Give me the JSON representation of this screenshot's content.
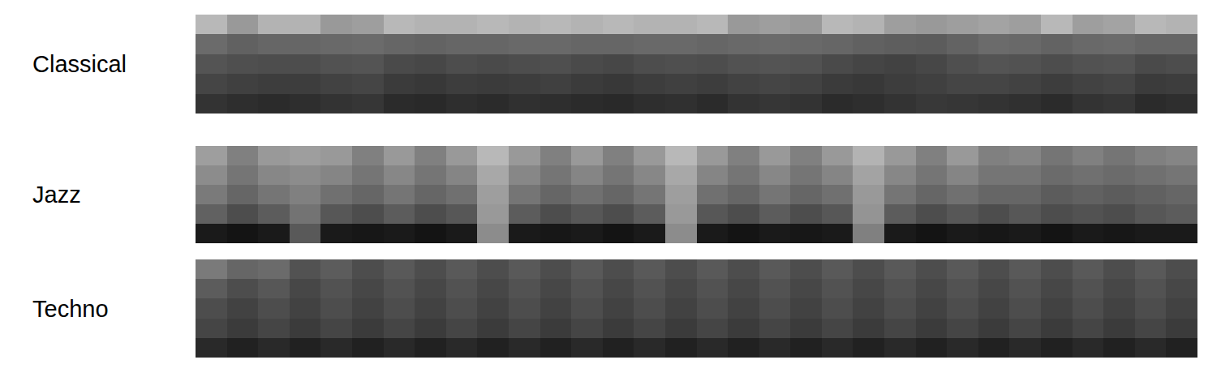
{
  "chart_data": [
    {
      "type": "heatmap",
      "title": "Classical",
      "tick_labels": false,
      "zlim": [
        0,
        1
      ],
      "z": [
        [
          0.2,
          0.18,
          0.17,
          0.18,
          0.2,
          0.21,
          0.17,
          0.16,
          0.18,
          0.17,
          0.19,
          0.18,
          0.17,
          0.16,
          0.18,
          0.19,
          0.17,
          0.2,
          0.21,
          0.2,
          0.17,
          0.18,
          0.2,
          0.22,
          0.21,
          0.2,
          0.19,
          0.17,
          0.2,
          0.21,
          0.17,
          0.18
        ],
        [
          0.27,
          0.25,
          0.24,
          0.24,
          0.26,
          0.27,
          0.23,
          0.22,
          0.24,
          0.23,
          0.24,
          0.25,
          0.23,
          0.22,
          0.24,
          0.25,
          0.24,
          0.26,
          0.27,
          0.26,
          0.23,
          0.22,
          0.24,
          0.25,
          0.27,
          0.27,
          0.26,
          0.24,
          0.26,
          0.27,
          0.23,
          0.24
        ],
        [
          0.33,
          0.31,
          0.3,
          0.3,
          0.32,
          0.33,
          0.29,
          0.28,
          0.3,
          0.29,
          0.3,
          0.31,
          0.29,
          0.28,
          0.3,
          0.31,
          0.3,
          0.32,
          0.33,
          0.32,
          0.29,
          0.27,
          0.26,
          0.28,
          0.31,
          0.33,
          0.32,
          0.3,
          0.32,
          0.33,
          0.29,
          0.3
        ],
        [
          0.42,
          0.38,
          0.4,
          0.4,
          0.41,
          0.42,
          0.4,
          0.39,
          0.4,
          0.4,
          0.41,
          0.41,
          0.4,
          0.4,
          0.41,
          0.41,
          0.4,
          0.41,
          0.42,
          0.41,
          0.4,
          0.38,
          0.37,
          0.36,
          0.39,
          0.42,
          0.41,
          0.39,
          0.41,
          0.42,
          0.4,
          0.4
        ],
        [
          0.72,
          0.6,
          0.7,
          0.7,
          0.6,
          0.62,
          0.72,
          0.7,
          0.7,
          0.72,
          0.7,
          0.72,
          0.7,
          0.72,
          0.7,
          0.7,
          0.72,
          0.6,
          0.62,
          0.6,
          0.72,
          0.7,
          0.62,
          0.6,
          0.62,
          0.64,
          0.62,
          0.72,
          0.62,
          0.64,
          0.72,
          0.7
        ]
      ]
    },
    {
      "type": "heatmap",
      "title": "Jazz",
      "tick_labels": false,
      "zlim": [
        0,
        1
      ],
      "z": [
        [
          0.1,
          0.08,
          0.1,
          0.35,
          0.1,
          0.09,
          0.1,
          0.08,
          0.1,
          0.55,
          0.1,
          0.09,
          0.1,
          0.08,
          0.1,
          0.55,
          0.1,
          0.08,
          0.1,
          0.09,
          0.1,
          0.5,
          0.1,
          0.08,
          0.1,
          0.09,
          0.1,
          0.08,
          0.1,
          0.09,
          0.1,
          0.1
        ],
        [
          0.38,
          0.3,
          0.36,
          0.45,
          0.34,
          0.3,
          0.36,
          0.3,
          0.34,
          0.6,
          0.36,
          0.3,
          0.34,
          0.3,
          0.36,
          0.6,
          0.34,
          0.3,
          0.36,
          0.3,
          0.34,
          0.58,
          0.36,
          0.3,
          0.34,
          0.3,
          0.34,
          0.3,
          0.32,
          0.3,
          0.34,
          0.36
        ],
        [
          0.48,
          0.4,
          0.46,
          0.5,
          0.44,
          0.4,
          0.46,
          0.4,
          0.44,
          0.62,
          0.46,
          0.4,
          0.44,
          0.4,
          0.46,
          0.62,
          0.44,
          0.4,
          0.46,
          0.4,
          0.44,
          0.6,
          0.46,
          0.4,
          0.44,
          0.4,
          0.4,
          0.36,
          0.38,
          0.36,
          0.38,
          0.4
        ],
        [
          0.55,
          0.46,
          0.53,
          0.55,
          0.52,
          0.46,
          0.53,
          0.46,
          0.52,
          0.66,
          0.53,
          0.46,
          0.52,
          0.46,
          0.53,
          0.66,
          0.52,
          0.46,
          0.53,
          0.46,
          0.52,
          0.64,
          0.53,
          0.46,
          0.52,
          0.46,
          0.46,
          0.42,
          0.44,
          0.42,
          0.44,
          0.46
        ],
        [
          0.62,
          0.5,
          0.6,
          0.62,
          0.6,
          0.5,
          0.6,
          0.5,
          0.6,
          0.72,
          0.6,
          0.5,
          0.6,
          0.5,
          0.6,
          0.72,
          0.6,
          0.5,
          0.6,
          0.5,
          0.6,
          0.7,
          0.6,
          0.5,
          0.6,
          0.5,
          0.52,
          0.46,
          0.5,
          0.46,
          0.5,
          0.52
        ]
      ]
    },
    {
      "type": "heatmap",
      "title": "Techno",
      "tick_labels": false,
      "zlim": [
        0,
        1
      ],
      "z": [
        [
          0.16,
          0.13,
          0.16,
          0.13,
          0.16,
          0.13,
          0.16,
          0.13,
          0.16,
          0.13,
          0.16,
          0.13,
          0.16,
          0.13,
          0.16,
          0.13,
          0.16,
          0.13,
          0.16,
          0.13,
          0.16,
          0.13,
          0.16,
          0.13,
          0.16,
          0.13,
          0.16,
          0.13,
          0.16,
          0.13,
          0.16,
          0.13
        ],
        [
          0.27,
          0.23,
          0.27,
          0.23,
          0.27,
          0.23,
          0.27,
          0.23,
          0.27,
          0.23,
          0.27,
          0.23,
          0.27,
          0.23,
          0.27,
          0.23,
          0.27,
          0.23,
          0.27,
          0.23,
          0.27,
          0.23,
          0.27,
          0.23,
          0.27,
          0.23,
          0.27,
          0.23,
          0.27,
          0.23,
          0.27,
          0.23
        ],
        [
          0.3,
          0.26,
          0.3,
          0.26,
          0.3,
          0.26,
          0.3,
          0.26,
          0.3,
          0.26,
          0.3,
          0.26,
          0.3,
          0.26,
          0.3,
          0.26,
          0.3,
          0.26,
          0.3,
          0.26,
          0.3,
          0.26,
          0.3,
          0.26,
          0.3,
          0.26,
          0.3,
          0.26,
          0.3,
          0.26,
          0.3,
          0.26
        ],
        [
          0.36,
          0.3,
          0.34,
          0.28,
          0.32,
          0.28,
          0.32,
          0.28,
          0.32,
          0.28,
          0.32,
          0.28,
          0.32,
          0.28,
          0.32,
          0.28,
          0.32,
          0.28,
          0.32,
          0.28,
          0.32,
          0.28,
          0.32,
          0.28,
          0.32,
          0.28,
          0.32,
          0.28,
          0.32,
          0.28,
          0.32,
          0.28
        ],
        [
          0.48,
          0.4,
          0.42,
          0.32,
          0.36,
          0.3,
          0.35,
          0.3,
          0.35,
          0.3,
          0.35,
          0.3,
          0.35,
          0.3,
          0.35,
          0.3,
          0.35,
          0.3,
          0.35,
          0.3,
          0.35,
          0.3,
          0.35,
          0.3,
          0.35,
          0.3,
          0.35,
          0.3,
          0.35,
          0.3,
          0.35,
          0.3
        ]
      ]
    }
  ]
}
